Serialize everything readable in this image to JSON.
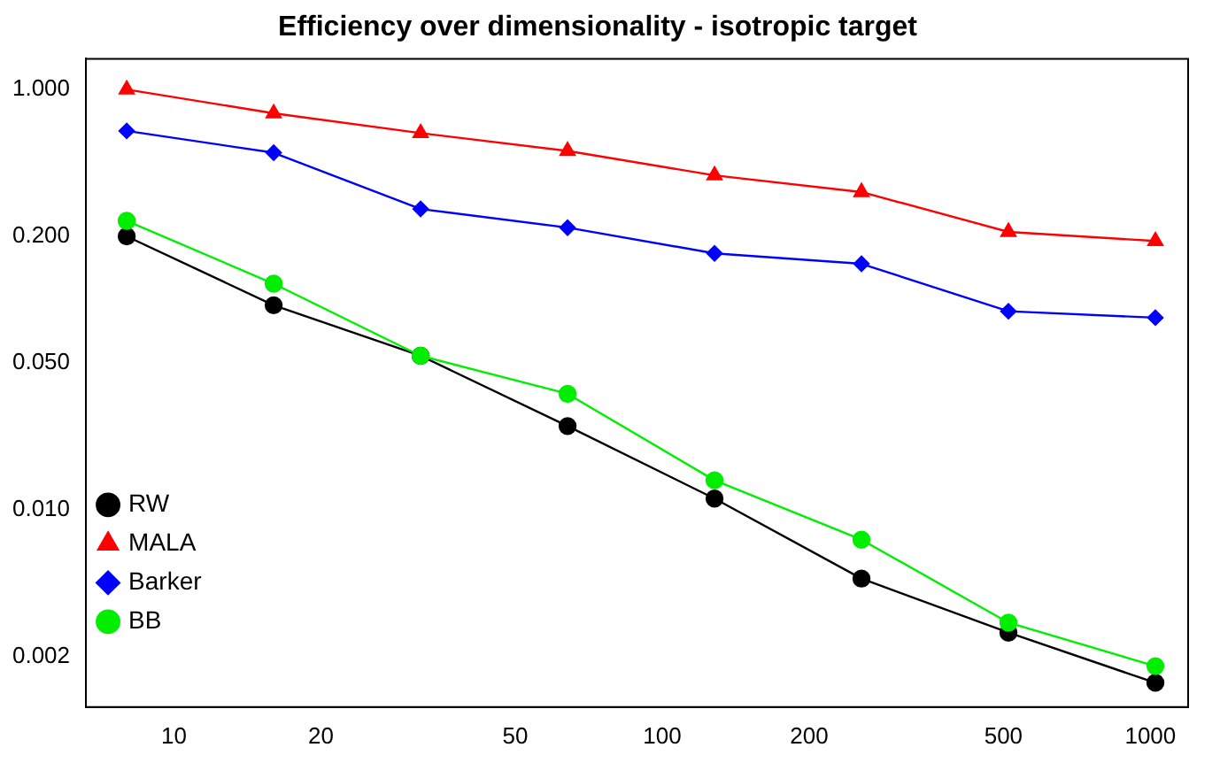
{
  "chart_data": {
    "type": "line",
    "title": "Efficiency over dimensionality - isotropic target",
    "log": "xy",
    "x": [
      8,
      16,
      32,
      64,
      128,
      256,
      512,
      1024
    ],
    "xlim": [
      6.6,
      1195
    ],
    "xticks": [
      10,
      20,
      50,
      100,
      200,
      500,
      1000
    ],
    "ylim": [
      0.00115,
      1.4
    ],
    "yticks": [
      {
        "value": 0.002,
        "label": "0.002"
      },
      {
        "value": 0.01,
        "label": "0.010"
      },
      {
        "value": 0.05,
        "label": "0.050"
      },
      {
        "value": 0.2,
        "label": "0.200"
      },
      {
        "value": 1,
        "label": "1.000"
      }
    ],
    "grid": false,
    "legend": "bottom left",
    "series": [
      {
        "name": "RW",
        "color": "#000000",
        "marker": "circle",
        "values": [
          0.2,
          0.094,
          0.054,
          0.025,
          0.0113,
          0.0047,
          0.0026,
          0.0015
        ]
      },
      {
        "name": "MALA",
        "color": "#ff0000",
        "marker": "triangle",
        "values": [
          1.0,
          0.77,
          0.62,
          0.51,
          0.39,
          0.325,
          0.21,
          0.19
        ]
      },
      {
        "name": "Barker",
        "color": "#0000ff",
        "marker": "diamond",
        "values": [
          0.635,
          0.5,
          0.27,
          0.22,
          0.166,
          0.148,
          0.088,
          0.082
        ]
      },
      {
        "name": "BB",
        "color": "#00ee00",
        "marker": "circle",
        "values": [
          0.237,
          0.119,
          0.054,
          0.0356,
          0.0138,
          0.0072,
          0.0029,
          0.0018
        ]
      }
    ]
  }
}
